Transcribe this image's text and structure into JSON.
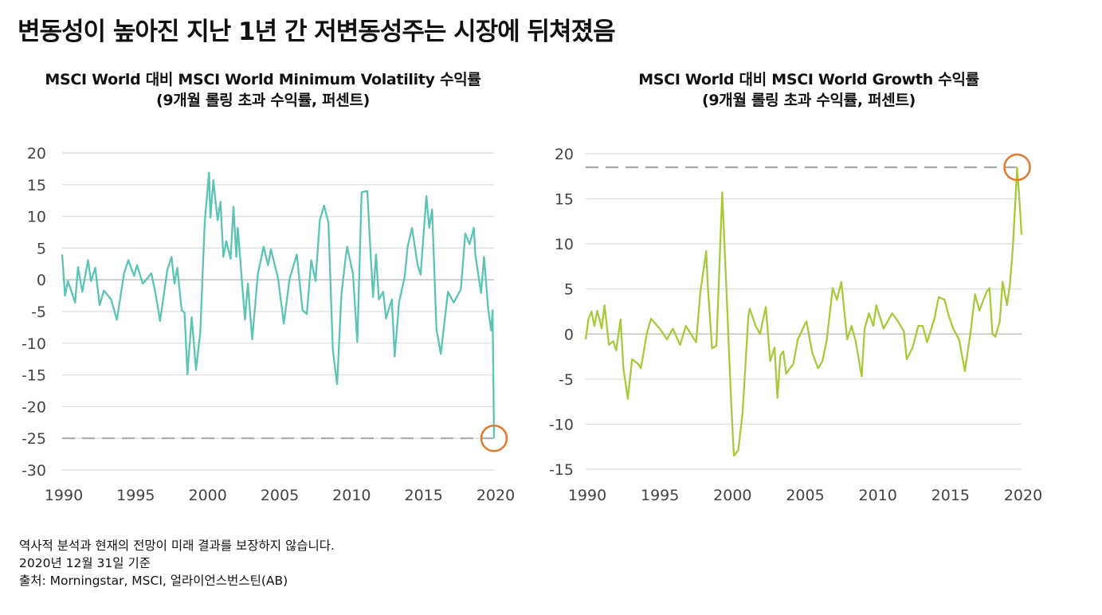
{
  "title": "변동성이 높아진 지난 1년 간 저변동성주는 시장에 뒤쳐졌음",
  "footnotes": [
    "역사적 분석과 현재의 전망이 미래 결과를 보장하지 않습니다.",
    "2020년 12월 31일 기준",
    "출처: Morningstar, MSCI, 얼라이언스번스틴(AB)"
  ],
  "colors": {
    "min_vol": "#5cc4b4",
    "growth": "#a9c93c",
    "highlight": "#e07a2e",
    "reference": "#a8a8a8",
    "grid": "#dcdcdc"
  },
  "chart_data": [
    {
      "type": "line",
      "title": "MSCI World 대비 MSCI World Minimum Volatility 수익률",
      "subtitle": "(9개월 롤링 초과 수익률, 퍼센트)",
      "xlim": [
        1990,
        2020
      ],
      "ylim": [
        -30,
        20
      ],
      "xticks": [
        1990,
        1995,
        2000,
        2005,
        2010,
        2015,
        2020
      ],
      "yticks": [
        20,
        15,
        10,
        5,
        0,
        -5,
        -10,
        -15,
        -20,
        -25,
        -30
      ],
      "grid": true,
      "reference_line": -25,
      "highlight_point": [
        2020,
        -25
      ],
      "x": [
        1990,
        1990.2,
        1990.4,
        1990.9,
        1991.1,
        1991.4,
        1991.8,
        1992,
        1992.3,
        1992.6,
        1992.9,
        1993.4,
        1993.8,
        1994.3,
        1994.6,
        1995,
        1995.2,
        1995.6,
        1996.2,
        1996.5,
        1996.8,
        1997.3,
        1997.6,
        1997.8,
        1998,
        1998.3,
        1998.5,
        1998.7,
        1999,
        1999.3,
        1999.6,
        1999.9,
        2000.2,
        2000.3,
        2000.5,
        2000.8,
        2001,
        2001.2,
        2001.4,
        2001.7,
        2001.9,
        2002.1,
        2002.2,
        2002.7,
        2002.9,
        2003.2,
        2003.6,
        2004,
        2004.3,
        2004.5,
        2005,
        2005.4,
        2005.8,
        2006.3,
        2006.7,
        2007,
        2007.3,
        2007.6,
        2007.9,
        2008.2,
        2008.5,
        2008.8,
        2009.1,
        2009.4,
        2009.7,
        2009.8,
        2010.2,
        2010.5,
        2010.6,
        2010.8,
        2011.2,
        2011.4,
        2011.6,
        2011.8,
        2012,
        2012.3,
        2012.5,
        2012.9,
        2013.1,
        2013.4,
        2013.8,
        2014,
        2014.3,
        2014.7,
        2014.9,
        2015.3,
        2015.5,
        2015.7,
        2016,
        2016.3,
        2016.8,
        2017.2,
        2017.7,
        2018,
        2018.3,
        2018.6,
        2018.7,
        2019.1,
        2019.3,
        2019.6,
        2019.8,
        2019.9,
        2020
      ],
      "y": [
        4,
        -2.5,
        -0.2,
        -3.6,
        2,
        -1.9,
        3.1,
        -0.2,
        1.9,
        -4,
        -1.7,
        -3.1,
        -6.3,
        1,
        3.1,
        0.6,
        2.3,
        -0.6,
        1,
        -2.3,
        -6.5,
        1.5,
        3.6,
        -0.6,
        1.9,
        -4.8,
        -5.2,
        -14.9,
        -5.9,
        -14.2,
        -8.2,
        9,
        16.9,
        9.8,
        15.7,
        9.4,
        12.3,
        3.6,
        6.1,
        3.3,
        11.5,
        3.6,
        8.2,
        -6.3,
        -0.6,
        -9.4,
        1,
        5.2,
        2.3,
        4.8,
        0.2,
        -6.9,
        0.2,
        4,
        -4.8,
        -5.4,
        3.1,
        -0.2,
        9.4,
        11.7,
        9,
        -11.1,
        -16.5,
        -2.3,
        3.6,
        5.2,
        1,
        -9.8,
        -2.3,
        13.8,
        14,
        5.2,
        -2.7,
        4,
        -3.1,
        -1.9,
        -6.1,
        -3.1,
        -12.1,
        -3.6,
        0.6,
        5.2,
        8.2,
        2.3,
        0.8,
        13.2,
        8.2,
        11.1,
        -7.7,
        -11.7,
        -1.9,
        -3.6,
        -1.5,
        7.3,
        5.6,
        8.2,
        4,
        -2.1,
        3.6,
        -4.8,
        -8,
        -4.8,
        -25
      ]
    },
    {
      "type": "line",
      "title": "MSCI World 대비 MSCI World Growth 수익률",
      "subtitle": "(9개월 롤링 초과 수익률, 퍼센트)",
      "xlim": [
        1990,
        2020
      ],
      "ylim": [
        -15,
        20
      ],
      "xticks": [
        1990,
        1995,
        2000,
        2005,
        2010,
        2015,
        2020
      ],
      "yticks": [
        20,
        15,
        10,
        5,
        0,
        -5,
        -10,
        -15
      ],
      "grid": true,
      "reference_line": 18.5,
      "highlight_point": [
        2019.7,
        18.5
      ],
      "x": [
        1990,
        1990.2,
        1990.4,
        1990.6,
        1990.8,
        1991.1,
        1991.3,
        1991.6,
        1991.9,
        1992.1,
        1992.4,
        1992.6,
        1992.9,
        1993.2,
        1993.6,
        1993.8,
        1994.2,
        1994.5,
        1995.1,
        1995.6,
        1996,
        1996.5,
        1996.9,
        1997.6,
        1997.9,
        1998.3,
        1998.4,
        1998.7,
        1999,
        1999.4,
        1999.7,
        2000,
        2000.2,
        2000.5,
        2000.8,
        2001.2,
        2001.3,
        2001.7,
        2002,
        2002.4,
        2002.7,
        2003,
        2003.2,
        2003.4,
        2003.6,
        2003.8,
        2004.3,
        2004.6,
        2005.1,
        2005.2,
        2005.6,
        2006,
        2006.3,
        2006.6,
        2007,
        2007.3,
        2007.6,
        2008,
        2008.3,
        2008.6,
        2009,
        2009.2,
        2009.5,
        2009.8,
        2010,
        2010.5,
        2011.1,
        2011.5,
        2011.9,
        2012.1,
        2012.5,
        2012.9,
        2013.2,
        2013.5,
        2014,
        2014.3,
        2014.7,
        2015,
        2015.3,
        2015.7,
        2016.1,
        2016.5,
        2016.8,
        2017.1,
        2017.6,
        2017.8,
        2018,
        2018.2,
        2018.5,
        2018.7,
        2019,
        2019.2,
        2019.4,
        2019.7,
        2019.9,
        2020
      ],
      "y": [
        -0.6,
        1.7,
        2.5,
        0.9,
        2.6,
        0.6,
        3.2,
        -1.2,
        -0.8,
        -1.8,
        1.6,
        -3.8,
        -7.2,
        -2.8,
        -3.3,
        -3.8,
        0,
        1.7,
        0.6,
        -0.6,
        0.6,
        -1.2,
        0.9,
        -0.9,
        4.7,
        9.2,
        5.5,
        -1.6,
        -1.3,
        15.7,
        4.4,
        -7,
        -13.5,
        -12.9,
        -8.8,
        2,
        2.8,
        0.9,
        0,
        3,
        -3,
        -1.5,
        -7.1,
        -2.4,
        -1.9,
        -4.4,
        -3.3,
        -0.6,
        1.1,
        1.4,
        -2.1,
        -3.8,
        -3,
        -0.6,
        5.1,
        3.8,
        5.8,
        -0.6,
        0.9,
        -0.9,
        -4.7,
        0.6,
        2.3,
        0.9,
        3.2,
        0.6,
        2.3,
        1.4,
        0.3,
        -2.8,
        -1.5,
        0.9,
        0.9,
        -0.9,
        1.7,
        4.1,
        3.8,
        2,
        0.6,
        -0.6,
        -4.1,
        0.3,
        4.4,
        2.6,
        4.7,
        5.1,
        0,
        -0.3,
        1.4,
        5.8,
        3.2,
        5.5,
        9.6,
        18.4,
        13.8,
        11
      ]
    }
  ]
}
